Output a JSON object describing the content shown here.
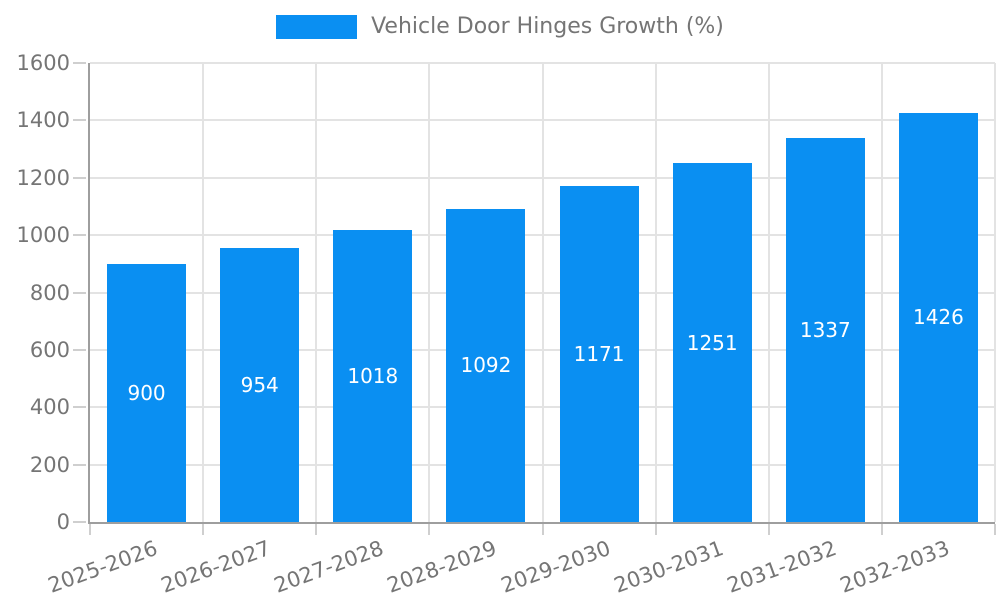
{
  "legend": {
    "label": "Vehicle Door Hinges Growth (%)"
  },
  "chart_data": {
    "type": "bar",
    "title": "Vehicle Door Hinges Growth (%)",
    "categories": [
      "2025-2026",
      "2026-2027",
      "2027-2028",
      "2028-2029",
      "2029-2030",
      "2030-2031",
      "2031-2032",
      "2032-2033"
    ],
    "values": [
      900,
      954,
      1018,
      1092,
      1171,
      1251,
      1337,
      1426
    ],
    "xlabel": "",
    "ylabel": "",
    "ylim": [
      0,
      1600
    ],
    "ytick_step": 200,
    "grid": true,
    "legend_position": "top-center",
    "value_labels": "centered-inside-bars",
    "colors": {
      "bar": "#0a8ff2",
      "value_label": "#ffffff",
      "axis_text": "#757575",
      "axis_line": "#9e9e9e",
      "gridline": "#e3e3e3",
      "tick": "#cfcfcf"
    }
  }
}
